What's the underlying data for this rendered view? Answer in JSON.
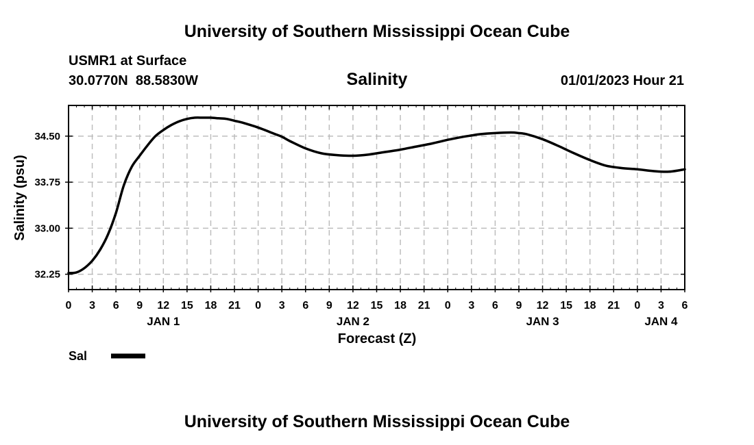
{
  "header": {
    "title": "University of Southern Mississippi Ocean Cube",
    "station": "USMR1 at Surface",
    "coords": "30.0770N  88.5830W",
    "variable": "Salinity",
    "datetime": "01/01/2023 Hour 21",
    "footer_title": "University of Southern Mississippi Ocean Cube"
  },
  "chart_data": {
    "type": "line",
    "title": "Salinity",
    "xlabel": "Forecast (Z)",
    "ylabel": "Salinity (psu)",
    "xlim": [
      0,
      78
    ],
    "ylim": [
      32.0,
      35.0
    ],
    "grid": true,
    "x_tick_values": [
      0,
      3,
      6,
      9,
      12,
      15,
      18,
      21,
      24,
      27,
      30,
      33,
      36,
      39,
      42,
      45,
      48,
      51,
      54,
      57,
      60,
      63,
      66,
      69,
      72,
      75,
      78
    ],
    "x_tick_labels": [
      "0",
      "3",
      "6",
      "9",
      "12",
      "15",
      "18",
      "21",
      "0",
      "3",
      "6",
      "9",
      "12",
      "15",
      "18",
      "21",
      "0",
      "3",
      "6",
      "9",
      "12",
      "15",
      "18",
      "21",
      "0",
      "3",
      "6"
    ],
    "y_tick_values": [
      32.25,
      33.0,
      33.75,
      34.5
    ],
    "y_tick_labels": [
      "32.25",
      "33.00",
      "33.75",
      "34.50"
    ],
    "date_labels": [
      {
        "label": "JAN 1",
        "x": 12
      },
      {
        "label": "JAN 2",
        "x": 36
      },
      {
        "label": "JAN 3",
        "x": 60
      },
      {
        "label": "JAN 4",
        "x": 75
      }
    ],
    "legend": {
      "placement": "bottom-left",
      "label": "Sal"
    },
    "series": [
      {
        "name": "Sal",
        "color": "#000000",
        "x": [
          0,
          1,
          2,
          3,
          4,
          5,
          6,
          7,
          8,
          9,
          10,
          11,
          12,
          13,
          14,
          15,
          16,
          17,
          18,
          19,
          20,
          21,
          22,
          24,
          26,
          27,
          28,
          30,
          32,
          34,
          36,
          38,
          40,
          42,
          44,
          46,
          48,
          50,
          51,
          52,
          54,
          56,
          57,
          58,
          60,
          62,
          63,
          64,
          66,
          68,
          70,
          72,
          74,
          76,
          78
        ],
        "y": [
          32.27,
          32.28,
          32.35,
          32.47,
          32.65,
          32.9,
          33.25,
          33.7,
          34.0,
          34.18,
          34.35,
          34.5,
          34.6,
          34.68,
          34.74,
          34.78,
          34.8,
          34.8,
          34.8,
          34.79,
          34.78,
          34.75,
          34.72,
          34.64,
          34.54,
          34.49,
          34.42,
          34.3,
          34.22,
          34.19,
          34.18,
          34.2,
          34.24,
          34.28,
          34.33,
          34.38,
          34.44,
          34.49,
          34.51,
          34.53,
          34.55,
          34.56,
          34.55,
          34.53,
          34.45,
          34.34,
          34.28,
          34.22,
          34.11,
          34.02,
          33.98,
          33.96,
          33.93,
          33.92,
          33.96
        ]
      }
    ]
  }
}
